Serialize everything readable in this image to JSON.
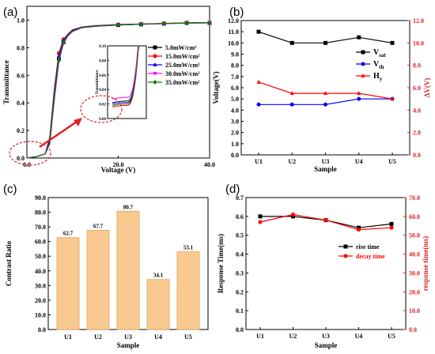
{
  "panels": {
    "a": "(a)",
    "b": "(b)",
    "c": "(c)",
    "d": "(d)"
  },
  "chart_data": [
    {
      "panel": "(a)",
      "type": "line",
      "xlabel": "Voltage (V)",
      "ylabel": "Transmittance",
      "xlim": [
        0,
        40
      ],
      "ylim": [
        0,
        1.1
      ],
      "xticks": [
        "0.0",
        "20.0",
        "40.0"
      ],
      "yticks": [
        "0.0",
        "0.2",
        "0.4",
        "0.6",
        "0.8",
        "1.0"
      ],
      "legend_position": "right",
      "series": [
        {
          "name": "5.0mW/cm²",
          "color": "#000000",
          "marker": "square",
          "x": [
            0,
            2,
            4,
            5,
            6,
            7,
            8,
            9,
            10,
            12,
            15,
            20,
            25,
            30,
            35,
            40
          ],
          "y": [
            0,
            0.01,
            0.03,
            0.12,
            0.45,
            0.72,
            0.84,
            0.89,
            0.92,
            0.945,
            0.955,
            0.965,
            0.97,
            0.975,
            0.98,
            0.98
          ]
        },
        {
          "name": "15.0mW/cm²",
          "color": "#ff0000",
          "marker": "circle",
          "x": [
            0,
            2,
            4,
            5,
            6,
            7,
            8,
            9,
            10,
            12,
            15,
            20,
            25,
            30,
            35,
            40
          ],
          "y": [
            0,
            0.01,
            0.03,
            0.15,
            0.5,
            0.76,
            0.86,
            0.9,
            0.93,
            0.95,
            0.96,
            0.968,
            0.972,
            0.976,
            0.98,
            0.98
          ]
        },
        {
          "name": "25.0mW/cm²",
          "color": "#0000ff",
          "marker": "triangle",
          "x": [
            0,
            2,
            4,
            5,
            6,
            7,
            8,
            9,
            10,
            12,
            15,
            20,
            25,
            30,
            35,
            40
          ],
          "y": [
            0,
            0.01,
            0.03,
            0.13,
            0.47,
            0.74,
            0.85,
            0.895,
            0.925,
            0.948,
            0.958,
            0.966,
            0.971,
            0.975,
            0.979,
            0.98
          ]
        },
        {
          "name": "30.0mW/cm²",
          "color": "#ff00ff",
          "marker": "triangle-down",
          "x": [
            0,
            2,
            4,
            5,
            6,
            7,
            8,
            9,
            10,
            12,
            15,
            20,
            25,
            30,
            35,
            40
          ],
          "y": [
            0,
            0.01,
            0.03,
            0.1,
            0.42,
            0.7,
            0.83,
            0.885,
            0.918,
            0.944,
            0.955,
            0.964,
            0.97,
            0.974,
            0.978,
            0.98
          ]
        },
        {
          "name": "35.0mW/cm²",
          "color": "#008000",
          "marker": "diamond",
          "x": [
            0,
            2,
            4,
            5,
            6,
            7,
            8,
            9,
            10,
            12,
            15,
            20,
            25,
            30,
            35,
            40
          ],
          "y": [
            0,
            0.01,
            0.03,
            0.11,
            0.44,
            0.71,
            0.84,
            0.89,
            0.92,
            0.946,
            0.956,
            0.965,
            0.97,
            0.975,
            0.979,
            0.98
          ]
        }
      ],
      "inset": {
        "ylabel": "Transmittance",
        "ylim": [
          0,
          0.1
        ],
        "yticks": [
          "0.00",
          "0.02",
          "0.04",
          "0.06",
          "0.08",
          "0.10"
        ]
      }
    },
    {
      "panel": "(b)",
      "type": "line",
      "xlabel": "Sample",
      "ylabel": "Voltage(V)",
      "y2label": "ΔV(V)",
      "categories": [
        "U1",
        "U2",
        "U3",
        "U4",
        "U5"
      ],
      "ylim": [
        0,
        12
      ],
      "yticks": [
        "0.0",
        "1.0",
        "2.0",
        "3.0",
        "4.0",
        "5.0",
        "6.0",
        "7.0",
        "8.0",
        "9.0",
        "10.0",
        "11.0",
        "12.0"
      ],
      "y2lim": [
        0,
        12
      ],
      "y2ticks": [
        "0.0",
        "2.0",
        "4.0",
        "6.0",
        "8.0",
        "10.0",
        "12.0"
      ],
      "legend_position": "right",
      "series": [
        {
          "name": "V",
          "sub": "sat",
          "color": "#000000",
          "marker": "square",
          "axis": "left",
          "values": [
            11.0,
            10.0,
            10.0,
            10.5,
            10.0
          ]
        },
        {
          "name": "V",
          "sub": "th",
          "color": "#0000ff",
          "marker": "circle",
          "axis": "left",
          "values": [
            4.5,
            4.5,
            4.5,
            5.0,
            5.0
          ]
        },
        {
          "name": "H",
          "sub": "y",
          "color": "#ff0000",
          "marker": "triangle",
          "axis": "right",
          "values": [
            6.5,
            5.5,
            5.5,
            5.5,
            5.0
          ]
        }
      ]
    },
    {
      "panel": "(c)",
      "type": "bar",
      "xlabel": "Sample",
      "ylabel": "Contrast Ratio",
      "categories": [
        "U1",
        "U2",
        "U3",
        "U4",
        "U5"
      ],
      "values": [
        62.7,
        67.7,
        80.7,
        34.1,
        53.1
      ],
      "labels": [
        "62.7",
        "67.7",
        "80.7",
        "34.1",
        "53.1"
      ],
      "ylim": [
        0,
        90
      ],
      "yticks": [
        "0.0",
        "10.0",
        "20.0",
        "30.0",
        "40.0",
        "50.0",
        "60.0",
        "70.0",
        "80.0",
        "90.0"
      ],
      "color": "#f8c990"
    },
    {
      "panel": "(d)",
      "type": "line",
      "xlabel": "Sample",
      "ylabel": "Response Time(ms)",
      "y2label": "response time(ms)",
      "categories": [
        "U1",
        "U2",
        "U3",
        "U4",
        "U5"
      ],
      "ylim": [
        0,
        0.7
      ],
      "yticks": [
        "0.0",
        "0.1",
        "0.2",
        "0.3",
        "0.4",
        "0.5",
        "0.6",
        "0.7"
      ],
      "y2lim": [
        0,
        70
      ],
      "y2ticks": [
        "0.0",
        "10.0",
        "20.0",
        "30.0",
        "40.0",
        "50.0",
        "60.0",
        "70.0"
      ],
      "legend_position": "center-right",
      "series": [
        {
          "name": "rise time",
          "color": "#000000",
          "marker": "square",
          "axis": "left",
          "values": [
            0.6,
            0.6,
            0.58,
            0.54,
            0.56
          ]
        },
        {
          "name": "decay time",
          "color": "#ff0000",
          "marker": "circle",
          "axis": "right",
          "values": [
            57,
            61,
            58,
            53,
            54
          ]
        }
      ]
    }
  ]
}
